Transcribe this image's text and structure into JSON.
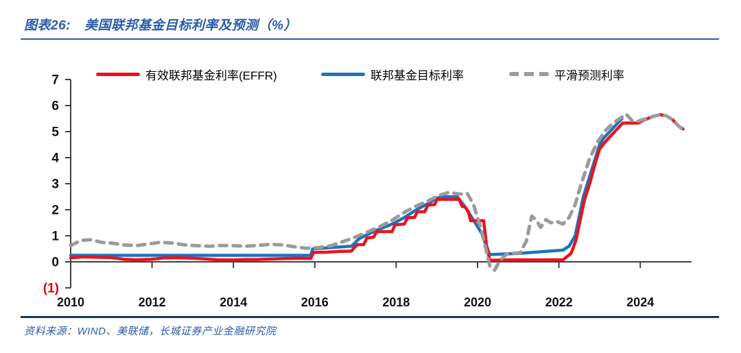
{
  "header": {
    "fig_label": "图表26:",
    "title": "美国联邦基金目标利率及预测（%）"
  },
  "legend": [
    {
      "label": "有效联邦基金利率(EFFR)",
      "color": "#e9141d",
      "style": "solid"
    },
    {
      "label": "联邦基金目标利率",
      "color": "#1e73be",
      "style": "solid"
    },
    {
      "label": "平滑预测利率",
      "color": "#9b9b9b",
      "style": "dashed"
    }
  ],
  "footer": {
    "source": "资料来源：WIND、美联储，长城证券产业金融研究院"
  },
  "colors": {
    "red": "#e9141d",
    "blue": "#1e73be",
    "gray": "#9b9b9b",
    "axis": "#404040",
    "tick_label": "#111111",
    "negative_tick": "#e00000",
    "title_blue": "#2a5caa"
  },
  "chart_data": {
    "type": "line",
    "title": "美国联邦基金目标利率及预测（%）",
    "xlabel": "",
    "ylabel": "",
    "xlim": [
      2010,
      2025.3
    ],
    "ylim": [
      -1,
      7
    ],
    "grid": false,
    "legend_position": "top",
    "y_ticks": [
      {
        "label": "7",
        "value": 7
      },
      {
        "label": "6",
        "value": 6
      },
      {
        "label": "5",
        "value": 5
      },
      {
        "label": "4",
        "value": 4
      },
      {
        "label": "3",
        "value": 3
      },
      {
        "label": "2",
        "value": 2
      },
      {
        "label": "1",
        "value": 1
      },
      {
        "label": "0",
        "value": 0
      },
      {
        "label": "(1)",
        "value": -1,
        "negative": true
      }
    ],
    "x_ticks": [
      {
        "label": "2010",
        "value": 2010
      },
      {
        "label": "2012",
        "value": 2012
      },
      {
        "label": "2014",
        "value": 2014
      },
      {
        "label": "2016",
        "value": 2016
      },
      {
        "label": "2018",
        "value": 2018
      },
      {
        "label": "2020",
        "value": 2020
      },
      {
        "label": "2022",
        "value": 2022
      },
      {
        "label": "2024",
        "value": 2024
      }
    ],
    "series": [
      {
        "name": "联邦基金目标利率",
        "color_key": "blue",
        "dash": false,
        "width": 4.5,
        "points": [
          [
            2010.0,
            0.25
          ],
          [
            2015.9,
            0.25
          ],
          [
            2015.95,
            0.5
          ],
          [
            2016.9,
            0.6
          ],
          [
            2017.1,
            0.9
          ],
          [
            2017.5,
            1.2
          ],
          [
            2017.9,
            1.45
          ],
          [
            2018.2,
            1.7
          ],
          [
            2018.5,
            2.0
          ],
          [
            2018.8,
            2.25
          ],
          [
            2019.0,
            2.45
          ],
          [
            2019.15,
            2.5
          ],
          [
            2019.5,
            2.5
          ],
          [
            2019.7,
            2.1
          ],
          [
            2019.9,
            1.6
          ],
          [
            2020.1,
            1.1
          ],
          [
            2020.3,
            0.28
          ],
          [
            2021.0,
            0.32
          ],
          [
            2022.1,
            0.45
          ],
          [
            2022.25,
            0.6
          ],
          [
            2022.4,
            1.0
          ],
          [
            2022.5,
            1.75
          ],
          [
            2022.6,
            2.5
          ],
          [
            2022.75,
            3.25
          ],
          [
            2022.9,
            4.0
          ],
          [
            2023.0,
            4.5
          ],
          [
            2023.1,
            4.75
          ],
          [
            2023.25,
            5.0
          ],
          [
            2023.4,
            5.25
          ],
          [
            2023.55,
            5.5
          ]
        ]
      },
      {
        "name": "有效联邦基金利率(EFFR)",
        "color_key": "red",
        "dash": false,
        "width": 4.5,
        "points": [
          [
            2010.0,
            0.15
          ],
          [
            2010.3,
            0.19
          ],
          [
            2010.6,
            0.18
          ],
          [
            2011.0,
            0.16
          ],
          [
            2011.3,
            0.1
          ],
          [
            2011.6,
            0.08
          ],
          [
            2012.0,
            0.1
          ],
          [
            2012.3,
            0.15
          ],
          [
            2012.6,
            0.16
          ],
          [
            2013.0,
            0.14
          ],
          [
            2013.3,
            0.11
          ],
          [
            2013.6,
            0.08
          ],
          [
            2014.0,
            0.07
          ],
          [
            2014.3,
            0.09
          ],
          [
            2014.6,
            0.09
          ],
          [
            2015.0,
            0.11
          ],
          [
            2015.3,
            0.13
          ],
          [
            2015.6,
            0.14
          ],
          [
            2015.9,
            0.13
          ],
          [
            2015.97,
            0.36
          ],
          [
            2016.3,
            0.37
          ],
          [
            2016.6,
            0.4
          ],
          [
            2016.9,
            0.41
          ],
          [
            2016.97,
            0.55
          ],
          [
            2017.05,
            0.66
          ],
          [
            2017.2,
            0.66
          ],
          [
            2017.28,
            0.91
          ],
          [
            2017.45,
            0.95
          ],
          [
            2017.52,
            1.16
          ],
          [
            2017.9,
            1.16
          ],
          [
            2017.97,
            1.42
          ],
          [
            2018.2,
            1.45
          ],
          [
            2018.28,
            1.7
          ],
          [
            2018.45,
            1.7
          ],
          [
            2018.52,
            1.92
          ],
          [
            2018.7,
            1.92
          ],
          [
            2018.78,
            2.18
          ],
          [
            2018.95,
            2.2
          ],
          [
            2019.0,
            2.4
          ],
          [
            2019.55,
            2.4
          ],
          [
            2019.62,
            2.13
          ],
          [
            2019.7,
            2.1
          ],
          [
            2019.78,
            1.9
          ],
          [
            2019.83,
            1.58
          ],
          [
            2020.15,
            1.58
          ],
          [
            2020.22,
            0.65
          ],
          [
            2020.3,
            0.06
          ],
          [
            2021.0,
            0.08
          ],
          [
            2021.5,
            0.07
          ],
          [
            2022.1,
            0.08
          ],
          [
            2022.2,
            0.2
          ],
          [
            2022.3,
            0.33
          ],
          [
            2022.42,
            0.83
          ],
          [
            2022.52,
            1.58
          ],
          [
            2022.62,
            2.33
          ],
          [
            2022.77,
            3.08
          ],
          [
            2022.9,
            3.83
          ],
          [
            2023.0,
            4.33
          ],
          [
            2023.12,
            4.57
          ],
          [
            2023.27,
            4.83
          ],
          [
            2023.42,
            5.08
          ],
          [
            2023.57,
            5.33
          ],
          [
            2023.95,
            5.33
          ],
          [
            2024.1,
            5.45
          ],
          [
            2024.3,
            5.58
          ],
          [
            2024.5,
            5.65
          ],
          [
            2024.65,
            5.6
          ],
          [
            2024.8,
            5.45
          ],
          [
            2024.95,
            5.2
          ],
          [
            2025.05,
            5.1
          ]
        ]
      },
      {
        "name": "平滑预测利率",
        "color_key": "gray",
        "dash": true,
        "width": 5,
        "points": [
          [
            2010.0,
            0.62
          ],
          [
            2010.25,
            0.82
          ],
          [
            2010.5,
            0.85
          ],
          [
            2010.75,
            0.75
          ],
          [
            2011.0,
            0.72
          ],
          [
            2011.3,
            0.65
          ],
          [
            2011.6,
            0.62
          ],
          [
            2011.9,
            0.68
          ],
          [
            2012.2,
            0.75
          ],
          [
            2012.5,
            0.72
          ],
          [
            2012.8,
            0.65
          ],
          [
            2013.1,
            0.62
          ],
          [
            2013.4,
            0.6
          ],
          [
            2013.7,
            0.63
          ],
          [
            2014.0,
            0.62
          ],
          [
            2014.3,
            0.6
          ],
          [
            2014.6,
            0.63
          ],
          [
            2014.9,
            0.67
          ],
          [
            2015.2,
            0.65
          ],
          [
            2015.5,
            0.58
          ],
          [
            2015.8,
            0.52
          ],
          [
            2016.1,
            0.55
          ],
          [
            2016.4,
            0.62
          ],
          [
            2016.7,
            0.78
          ],
          [
            2017.0,
            0.95
          ],
          [
            2017.3,
            1.15
          ],
          [
            2017.6,
            1.35
          ],
          [
            2017.9,
            1.6
          ],
          [
            2018.2,
            1.9
          ],
          [
            2018.5,
            2.15
          ],
          [
            2018.8,
            2.35
          ],
          [
            2019.05,
            2.55
          ],
          [
            2019.3,
            2.67
          ],
          [
            2019.55,
            2.6
          ],
          [
            2019.75,
            2.62
          ],
          [
            2019.9,
            2.2
          ],
          [
            2020.1,
            1.2
          ],
          [
            2020.3,
            -0.15
          ],
          [
            2020.42,
            -0.32
          ],
          [
            2020.55,
            0.05
          ],
          [
            2020.7,
            0.28
          ],
          [
            2020.9,
            0.33
          ],
          [
            2021.05,
            0.35
          ],
          [
            2021.2,
            0.8
          ],
          [
            2021.33,
            1.75
          ],
          [
            2021.45,
            1.6
          ],
          [
            2021.55,
            1.32
          ],
          [
            2021.68,
            1.62
          ],
          [
            2021.8,
            1.5
          ],
          [
            2021.95,
            1.55
          ],
          [
            2022.1,
            1.45
          ],
          [
            2022.25,
            1.7
          ],
          [
            2022.4,
            2.2
          ],
          [
            2022.55,
            3.0
          ],
          [
            2022.75,
            3.95
          ],
          [
            2022.95,
            4.6
          ],
          [
            2023.15,
            5.05
          ],
          [
            2023.35,
            5.35
          ],
          [
            2023.5,
            5.5
          ],
          [
            2023.65,
            5.67
          ],
          [
            2023.8,
            5.42
          ],
          [
            2023.95,
            5.4
          ],
          [
            2024.15,
            5.5
          ],
          [
            2024.35,
            5.6
          ],
          [
            2024.5,
            5.65
          ],
          [
            2024.65,
            5.6
          ],
          [
            2024.8,
            5.45
          ],
          [
            2024.95,
            5.2
          ],
          [
            2025.05,
            5.08
          ]
        ]
      }
    ]
  }
}
